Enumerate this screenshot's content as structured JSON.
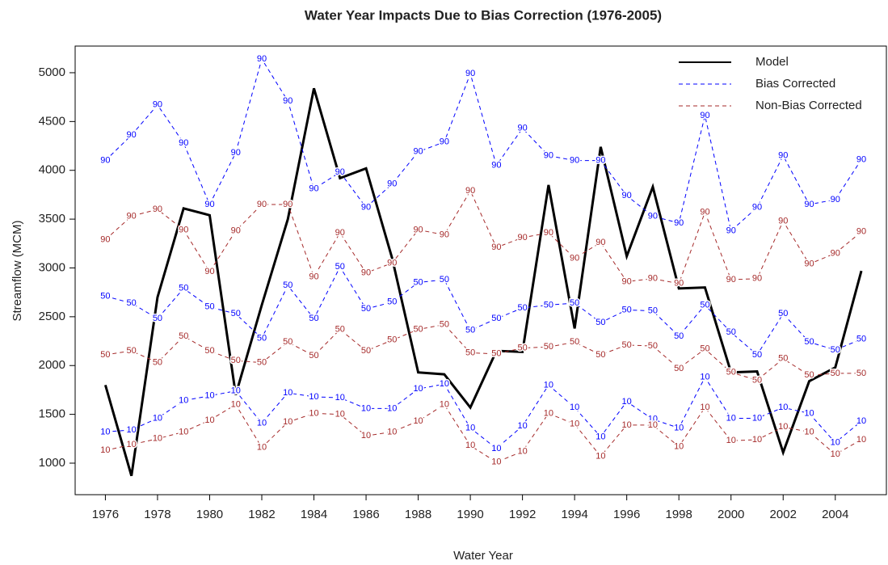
{
  "chart_data": {
    "type": "line",
    "title": "Water Year Impacts Due to Bias Correction (1976-2005)",
    "x_label": "Water Year",
    "y_label": "Streamflow (MCM)",
    "x": [
      1976,
      1977,
      1978,
      1979,
      1980,
      1981,
      1982,
      1983,
      1984,
      1985,
      1986,
      1987,
      1988,
      1989,
      1990,
      1991,
      1992,
      1993,
      1994,
      1995,
      1996,
      1997,
      1998,
      1999,
      2000,
      2001,
      2002,
      2003,
      2004,
      2005
    ],
    "xlim": [
      1974.84,
      2005.96
    ],
    "xticks": [
      1976,
      1978,
      1980,
      1982,
      1984,
      1986,
      1988,
      1990,
      1992,
      1994,
      1996,
      1998,
      2000,
      2002,
      2004
    ],
    "ylim": [
      677,
      5273
    ],
    "yticks": [
      1000,
      1500,
      2000,
      2500,
      3000,
      3500,
      4000,
      4500,
      5000
    ],
    "legend": "top-right",
    "series": [
      {
        "name": "Model",
        "color": "#000000",
        "dashed": false,
        "values": [
          1800,
          870,
          2700,
          3610,
          3540,
          1700,
          2620,
          3500,
          4840,
          3920,
          4020,
          3100,
          1930,
          1910,
          1570,
          2150,
          2140,
          3850,
          2380,
          4240,
          3120,
          3830,
          2790,
          2800,
          1930,
          1940,
          1110,
          1840,
          1980,
          2970
        ]
      },
      {
        "name": "Bias Corrected",
        "color": "#0000ff",
        "dashed": true,
        "lines": [
          {
            "label": "90",
            "values": [
              4100,
              4360,
              4670,
              4280,
              3650,
              4180,
              5140,
              4710,
              3810,
              3980,
              3620,
              3860,
              4190,
              4290,
              4990,
              4050,
              4430,
              4150,
              4100,
              4100,
              3740,
              3530,
              3460,
              4560,
              3380,
              3620,
              4150,
              3650,
              3700,
              4110
            ]
          },
          {
            "label": "50",
            "values": [
              2710,
              2640,
              2480,
              2790,
              2600,
              2530,
              2280,
              2820,
              2480,
              3010,
              2580,
              2650,
              2850,
              2880,
              2360,
              2480,
              2590,
              2620,
              2640,
              2440,
              2570,
              2560,
              2300,
              2620,
              2340,
              2110,
              2530,
              2240,
              2160,
              2270
            ]
          },
          {
            "label": "10",
            "values": [
              1320,
              1340,
              1460,
              1640,
              1690,
              1740,
              1410,
              1720,
              1680,
              1670,
              1560,
              1560,
              1760,
              1810,
              1360,
              1150,
              1380,
              1800,
              1570,
              1270,
              1630,
              1450,
              1360,
              1880,
              1460,
              1460,
              1570,
              1510,
              1210,
              1430
            ]
          }
        ]
      },
      {
        "name": "Non-Bias Corrected",
        "color": "#a52a2a",
        "dashed": true,
        "lines": [
          {
            "label": "90",
            "values": [
              3290,
              3530,
              3600,
              3390,
              2960,
              3380,
              3650,
              3650,
              2910,
              3360,
              2950,
              3050,
              3390,
              3340,
              3790,
              3210,
              3310,
              3360,
              3100,
              3260,
              2860,
              2890,
              2840,
              3570,
              2880,
              2890,
              3480,
              3040,
              3150,
              3370
            ]
          },
          {
            "label": "50",
            "values": [
              2110,
              2150,
              2030,
              2300,
              2150,
              2050,
              2030,
              2240,
              2100,
              2370,
              2150,
              2260,
              2370,
              2420,
              2130,
              2120,
              2180,
              2190,
              2240,
              2110,
              2210,
              2200,
              1970,
              2170,
              1930,
              1850,
              2070,
              1900,
              1920,
              1920
            ]
          },
          {
            "label": "10",
            "values": [
              1130,
              1190,
              1250,
              1320,
              1440,
              1600,
              1160,
              1420,
              1510,
              1500,
              1280,
              1320,
              1430,
              1600,
              1180,
              1010,
              1120,
              1510,
              1400,
              1070,
              1390,
              1390,
              1170,
              1570,
              1230,
              1240,
              1370,
              1320,
              1090,
              1240
            ]
          }
        ]
      }
    ]
  }
}
